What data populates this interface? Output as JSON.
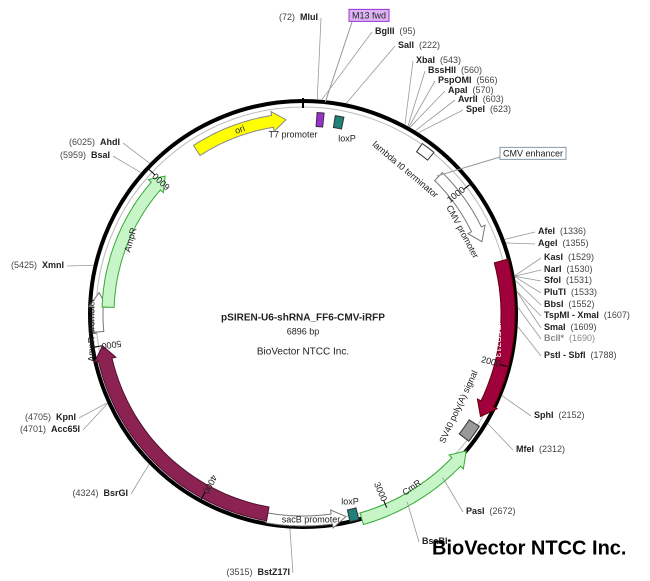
{
  "map": {
    "title": "pSIREN-U6-shRNA_FF6-CMV-iRFP",
    "size": "6896 bp",
    "company": "BioVector NTCC Inc.",
    "watermark": "BioVector NTCC Inc.",
    "scale_ticks": [
      1000,
      2000,
      3000,
      4000,
      5000,
      6000
    ],
    "primer": "M13 fwd",
    "features": [
      {
        "label": "ori"
      },
      {
        "label": "T7 promoter"
      },
      {
        "label": "loxP"
      },
      {
        "label": "lambda t0 terminator"
      },
      {
        "label": "CMV enhancer"
      },
      {
        "label": "CMV promoter"
      },
      {
        "label": "iRFP713"
      },
      {
        "label": "SV40 poly(A) signal"
      },
      {
        "label": "CmR"
      },
      {
        "label": "loxP"
      },
      {
        "label": "sacB promoter"
      },
      {
        "label": "SacB"
      },
      {
        "label": "AmpR promoter"
      },
      {
        "label": "AmpR"
      }
    ],
    "sites": [
      {
        "name": "MluI",
        "position": "(72)"
      },
      {
        "name": "BglII",
        "position": "(95)"
      },
      {
        "name": "SalI",
        "position": "(222)"
      },
      {
        "name": "XbaI",
        "position": "(543)"
      },
      {
        "name": "BssHII",
        "position": "(560)"
      },
      {
        "name": "PspOMI",
        "position": "(566)"
      },
      {
        "name": "ApaI",
        "position": "(570)"
      },
      {
        "name": "AvrII",
        "position": "(603)"
      },
      {
        "name": "SpeI",
        "position": "(623)"
      },
      {
        "name": "AfeI",
        "position": "(1336)"
      },
      {
        "name": "AgeI",
        "position": "(1355)"
      },
      {
        "name": "KasI",
        "position": "(1529)"
      },
      {
        "name": "NarI",
        "position": "(1530)"
      },
      {
        "name": "SfoI",
        "position": "(1531)"
      },
      {
        "name": "PluTI",
        "position": "(1533)"
      },
      {
        "name": "BbsI",
        "position": "(1552)"
      },
      {
        "name": "TspMI - XmaI",
        "position": "(1607)"
      },
      {
        "name": "SmaI",
        "position": "(1609)"
      },
      {
        "name": "BclI*",
        "position": "(1690)"
      },
      {
        "name": "PstI - SbfI",
        "position": "(1788)"
      },
      {
        "name": "SphI",
        "position": "(2152)"
      },
      {
        "name": "MfeI",
        "position": "(2312)"
      },
      {
        "name": "PasI",
        "position": "(2672)"
      },
      {
        "name": "BsaBI"
      },
      {
        "name": "BstZ17I",
        "position": "(3515)"
      },
      {
        "name": "BsrGI",
        "position": "(4324)"
      },
      {
        "name": "KpnI",
        "position": "(4705)"
      },
      {
        "name": "Acc65I",
        "position": "(4701)"
      },
      {
        "name": "XmnI",
        "position": "(5425)"
      },
      {
        "name": "BsaI",
        "position": "(5959)"
      },
      {
        "name": "AhdI",
        "position": "(6025)"
      }
    ]
  }
}
